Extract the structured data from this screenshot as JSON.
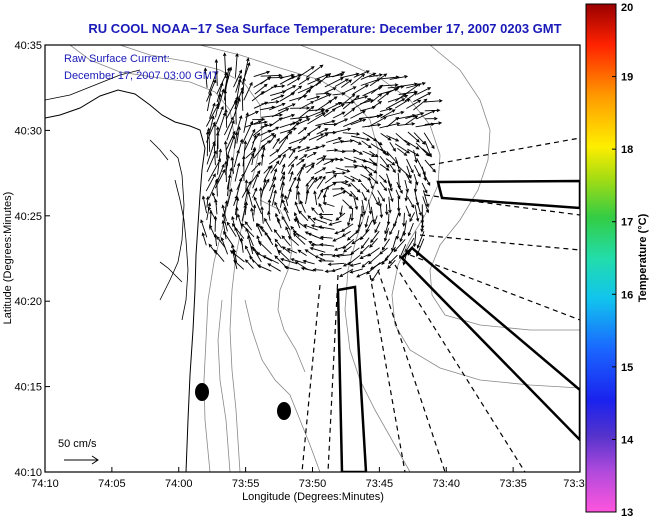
{
  "chart_data": {
    "type": "map",
    "title": "RU COOL  NOAA−17  Sea Surface Temperature:  December 17, 2007 0203 GMT",
    "annotation_lines": [
      "Raw Surface Current:",
      "December 17, 2007 03:00 GMT"
    ],
    "scale_label": "50 cm/s",
    "xlabel": "Longitude (Degrees:Minutes)",
    "ylabel": "Latitude (Degrees:Minutes)",
    "x_ticks": [
      "74:10",
      "74:05",
      "74:00",
      "73:55",
      "73:50",
      "73:45",
      "73:40",
      "73:35",
      "73:3"
    ],
    "y_ticks": [
      "40:35",
      "40:30",
      "40:25",
      "40:20",
      "40:15",
      "40:10"
    ],
    "colorbar": {
      "label": "Temperature (°C)",
      "ticks": [
        "20",
        "19",
        "18",
        "17",
        "16",
        "15",
        "14",
        "13"
      ],
      "range": [
        13,
        20
      ]
    },
    "colors": {
      "title": "#1a1ab8",
      "vectors": "#000000",
      "contours": "#888888",
      "frame": "#000000"
    }
  }
}
